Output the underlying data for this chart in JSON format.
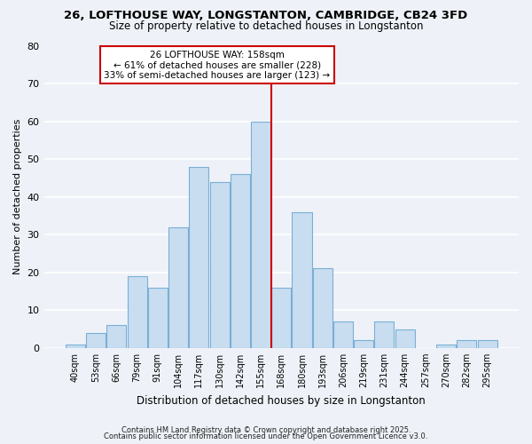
{
  "title1": "26, LOFTHOUSE WAY, LONGSTANTON, CAMBRIDGE, CB24 3FD",
  "title2": "Size of property relative to detached houses in Longstanton",
  "xlabel": "Distribution of detached houses by size in Longstanton",
  "ylabel": "Number of detached properties",
  "categories": [
    "40sqm",
    "53sqm",
    "66sqm",
    "79sqm",
    "91sqm",
    "104sqm",
    "117sqm",
    "130sqm",
    "142sqm",
    "155sqm",
    "168sqm",
    "180sqm",
    "193sqm",
    "206sqm",
    "219sqm",
    "231sqm",
    "244sqm",
    "257sqm",
    "270sqm",
    "282sqm",
    "295sqm"
  ],
  "values": [
    1,
    4,
    6,
    19,
    16,
    32,
    48,
    44,
    46,
    60,
    16,
    36,
    21,
    7,
    2,
    7,
    5,
    0,
    1,
    2,
    2
  ],
  "bar_color": "#c8ddf0",
  "bar_edge_color": "#7aafd4",
  "vline_x_index": 9.5,
  "vline_color": "#cc0000",
  "annotation_title": "26 LOFTHOUSE WAY: 158sqm",
  "annotation_line1": "← 61% of detached houses are smaller (228)",
  "annotation_line2": "33% of semi-detached houses are larger (123) →",
  "annotation_box_color": "#ffffff",
  "annotation_box_edge": "#cc0000",
  "ylim": [
    0,
    80
  ],
  "yticks": [
    0,
    10,
    20,
    30,
    40,
    50,
    60,
    70,
    80
  ],
  "footnote1": "Contains HM Land Registry data © Crown copyright and database right 2025.",
  "footnote2": "Contains public sector information licensed under the Open Government Licence v3.0.",
  "background_color": "#eef2f8",
  "grid_color": "#ffffff",
  "title1_fontsize": 9.5,
  "title2_fontsize": 8.5,
  "xlabel_fontsize": 8.5,
  "ylabel_fontsize": 8.0,
  "tick_fontsize": 7.0,
  "footnote_fontsize": 6.0,
  "annot_fontsize": 7.5
}
